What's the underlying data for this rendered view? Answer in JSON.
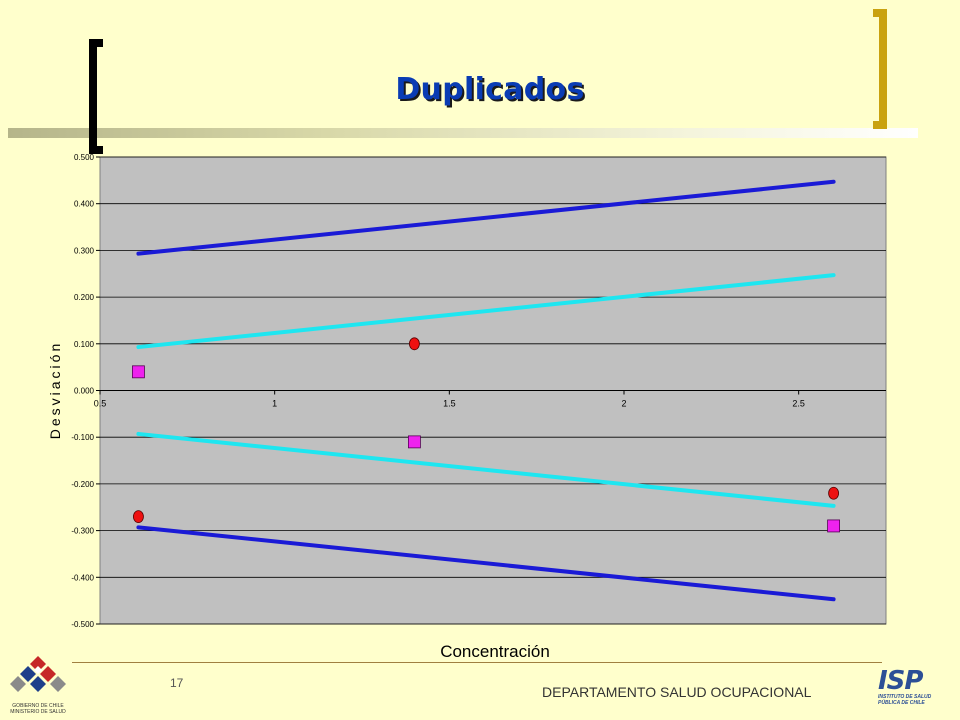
{
  "slide": {
    "title": "Duplicados",
    "page_number": "17",
    "department": "DEPARTAMENTO SALUD OCUPACIONAL",
    "logo_left_caption": [
      "GOBIERNO DE CHILE",
      "MINISTERIO DE SALUD"
    ],
    "logo_right_text": "ISP",
    "logo_right_caption": [
      "INSTITUTO DE SALUD",
      "PÚBLICA DE CHILE"
    ]
  },
  "chart_data": {
    "type": "scatter",
    "title": "",
    "xlabel": "Concentración",
    "ylabel": "Desviación",
    "xlim": [
      0.5,
      2.75
    ],
    "ylim": [
      -0.5,
      0.5
    ],
    "x_ticks": [
      0.5,
      1,
      1.5,
      2,
      2.5
    ],
    "x_tick_labels": [
      "0.5",
      "1",
      "1.5",
      "2",
      "2.5"
    ],
    "y_ticks": [
      0.5,
      0.4,
      0.3,
      0.2,
      0.1,
      0.0,
      -0.1,
      -0.2,
      -0.3,
      -0.4,
      -0.5
    ],
    "y_tick_labels": [
      "0.500",
      "0.400",
      "0.300",
      "0.200",
      "0.100",
      "0.000",
      "-0.100",
      "-0.200",
      "-0.300",
      "-0.400",
      "-0.500"
    ],
    "grid": true,
    "colors": {
      "plot_bg": "#c0c0c0",
      "outer_limit": "#1a1ad6",
      "inner_limit": "#1ee6f0",
      "circle": "#ee1111",
      "square": "#ee22ee"
    },
    "lines": [
      {
        "role": "outer",
        "x": [
          0.61,
          2.6
        ],
        "y": [
          0.293,
          0.447
        ]
      },
      {
        "role": "inner",
        "x": [
          0.61,
          2.6
        ],
        "y": [
          0.093,
          0.247
        ]
      },
      {
        "role": "inner",
        "x": [
          0.61,
          2.6
        ],
        "y": [
          -0.093,
          -0.247
        ]
      },
      {
        "role": "outer",
        "x": [
          0.61,
          2.6
        ],
        "y": [
          -0.293,
          -0.447
        ]
      }
    ],
    "series": [
      {
        "marker": "circle",
        "x": [
          0.61,
          1.4,
          2.6
        ],
        "y": [
          -0.27,
          0.1,
          -0.22
        ]
      },
      {
        "marker": "square",
        "x": [
          0.61,
          1.4,
          2.6
        ],
        "y": [
          0.04,
          -0.11,
          -0.29
        ]
      }
    ]
  }
}
